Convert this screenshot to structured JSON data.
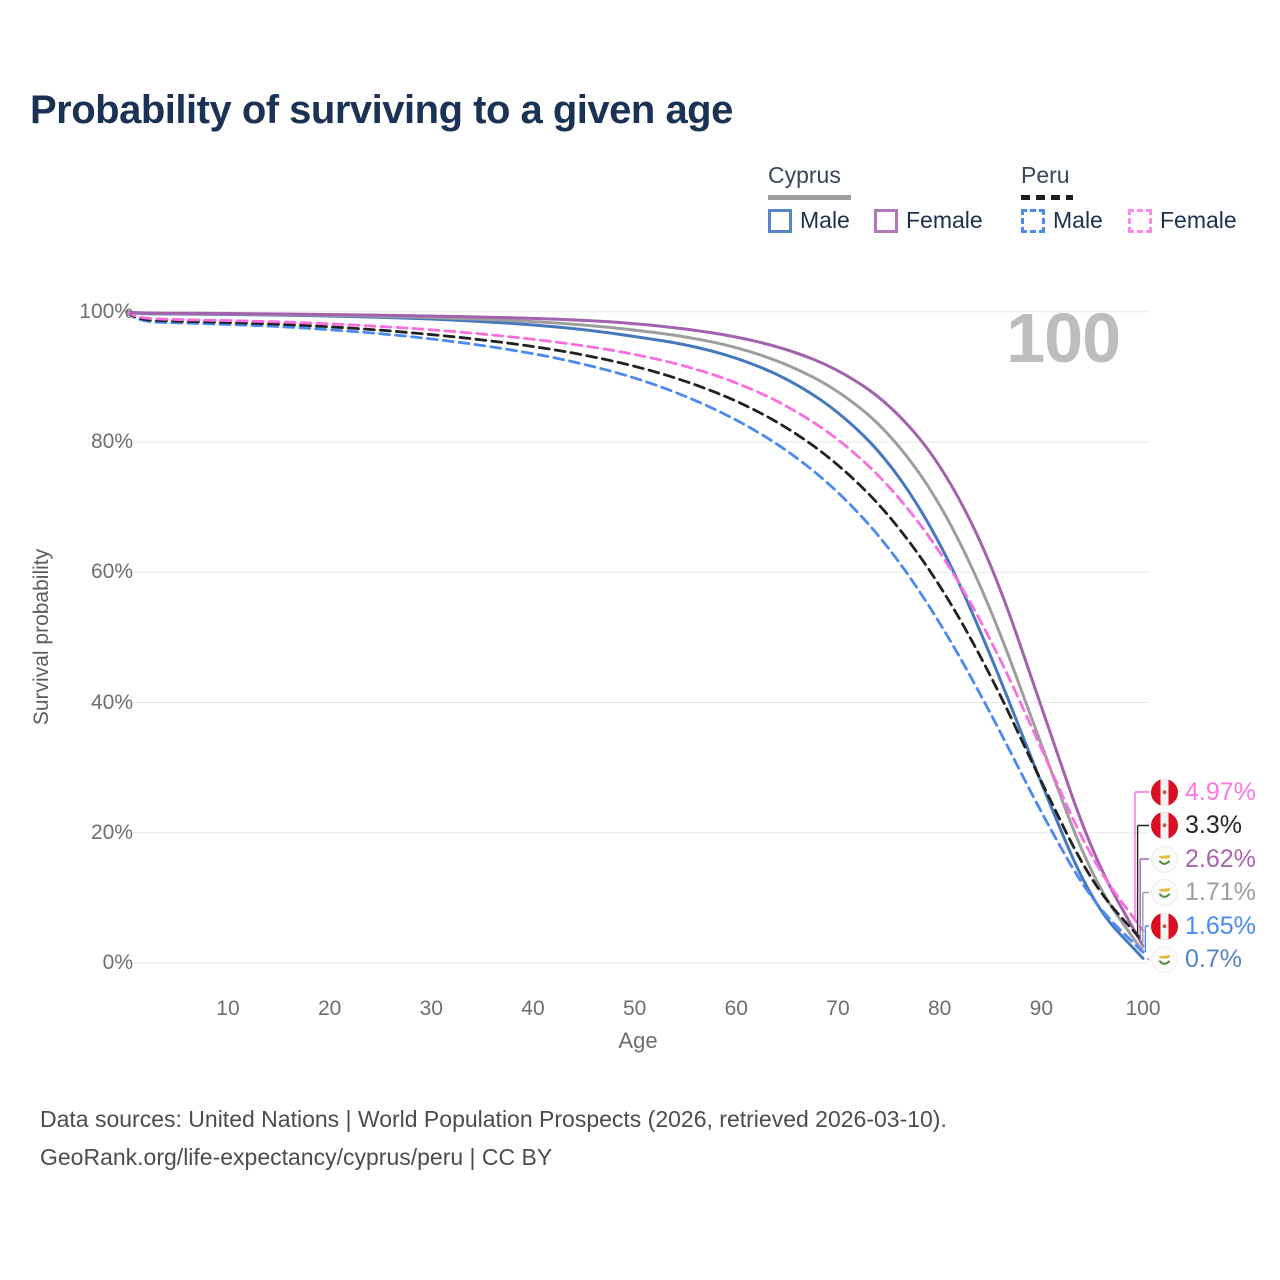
{
  "title": "Probability of surviving to a given age",
  "age_counter": "100",
  "legend": {
    "groups": [
      {
        "country": "Cyprus",
        "line_style": "solid",
        "underline_color": "#9e9e9e",
        "items": [
          {
            "label": "Male",
            "color": "#5b85c4"
          },
          {
            "label": "Female",
            "color": "#b478ba"
          }
        ]
      },
      {
        "country": "Peru",
        "line_style": "dashed",
        "underline_color": "#1d1d1d",
        "items": [
          {
            "label": "Male",
            "color": "#4a8af2"
          },
          {
            "label": "Female",
            "color": "#fa8ae6"
          }
        ]
      }
    ]
  },
  "axes": {
    "y_title": "Survival probability",
    "y_ticks": [
      {
        "label": "100%",
        "value": 100
      },
      {
        "label": "80%",
        "value": 80
      },
      {
        "label": "60%",
        "value": 60
      },
      {
        "label": "40%",
        "value": 40
      },
      {
        "label": "20%",
        "value": 20
      },
      {
        "label": "0%",
        "value": 0
      }
    ],
    "x_title": "Age",
    "x_ticks": [
      {
        "label": "10",
        "value": 10
      },
      {
        "label": "20",
        "value": 20
      },
      {
        "label": "30",
        "value": 30
      },
      {
        "label": "40",
        "value": 40
      },
      {
        "label": "50",
        "value": 50
      },
      {
        "label": "60",
        "value": 60
      },
      {
        "label": "70",
        "value": 70
      },
      {
        "label": "80",
        "value": 80
      },
      {
        "label": "90",
        "value": 90
      },
      {
        "label": "100",
        "value": 100
      }
    ]
  },
  "chart_data": {
    "type": "line",
    "title": "Probability of surviving to a given age",
    "xlabel": "Age",
    "ylabel": "Survival probability",
    "x_range": [
      0,
      100
    ],
    "y_range_pct": [
      0,
      100
    ],
    "grid": "horizontal",
    "legend_position": "top-right",
    "ages": [
      0,
      1,
      5,
      10,
      15,
      20,
      25,
      30,
      35,
      40,
      45,
      50,
      55,
      60,
      65,
      70,
      75,
      80,
      85,
      90,
      95,
      100
    ],
    "series": [
      {
        "name": "Cyprus Male",
        "country": "Cyprus",
        "sex": "Male",
        "style": "solid",
        "color": "#4678be",
        "values": [
          100,
          99.7,
          99.65,
          99.6,
          99.5,
          99.35,
          99.15,
          98.9,
          98.5,
          98.0,
          97.3,
          96.2,
          95.0,
          93.0,
          89.8,
          84.8,
          77.2,
          65.0,
          47.5,
          27.5,
          9.0,
          0.7
        ],
        "final_label": "0.7%"
      },
      {
        "name": "Cyprus Total",
        "country": "Cyprus",
        "sex": "Both",
        "style": "solid",
        "color": "#9e9e9e",
        "values": [
          100,
          99.76,
          99.71,
          99.66,
          99.57,
          99.46,
          99.3,
          99.12,
          98.85,
          98.5,
          98.0,
          97.2,
          96.2,
          94.6,
          92.0,
          88.0,
          81.6,
          71.0,
          54.8,
          33.5,
          12.8,
          1.71
        ],
        "final_label": "1.71%"
      },
      {
        "name": "Cyprus Female",
        "country": "Cyprus",
        "sex": "Female",
        "style": "solid",
        "color": "#a262ae",
        "values": [
          100,
          99.82,
          99.78,
          99.73,
          99.65,
          99.57,
          99.47,
          99.35,
          99.2,
          99.0,
          98.7,
          98.2,
          97.4,
          96.2,
          94.3,
          91.2,
          86.0,
          77.0,
          62.0,
          39.5,
          16.5,
          2.62
        ],
        "final_label": "2.62%"
      },
      {
        "name": "Peru Male",
        "country": "Peru",
        "sex": "Male",
        "style": "dashed",
        "color": "#4a8af2",
        "values": [
          100,
          98.5,
          98.3,
          98.05,
          97.75,
          97.25,
          96.65,
          95.85,
          94.85,
          93.6,
          92.0,
          89.9,
          87.1,
          83.5,
          78.8,
          72.5,
          64.0,
          52.5,
          38.5,
          23.0,
          9.3,
          1.65
        ],
        "final_label": "1.65%"
      },
      {
        "name": "Peru Total",
        "country": "Peru",
        "sex": "Both",
        "style": "dashed",
        "color": "#222222",
        "values": [
          100,
          98.75,
          98.55,
          98.35,
          98.1,
          97.7,
          97.2,
          96.5,
          95.7,
          94.7,
          93.4,
          91.7,
          89.4,
          86.4,
          82.3,
          76.7,
          69.0,
          58.3,
          44.4,
          27.8,
          12.0,
          3.3
        ],
        "final_label": "3.3%"
      },
      {
        "name": "Peru Female",
        "country": "Peru",
        "sex": "Female",
        "style": "dashed",
        "color": "#fa6ee0",
        "values": [
          100,
          99.0,
          98.8,
          98.65,
          98.45,
          98.15,
          97.75,
          97.25,
          96.6,
          95.8,
          94.8,
          93.5,
          91.7,
          89.2,
          85.6,
          80.6,
          73.5,
          63.5,
          50.0,
          33.0,
          15.5,
          4.97
        ],
        "final_label": "4.97%"
      }
    ]
  },
  "end_labels": [
    {
      "label": "4.97%",
      "color": "#f878df",
      "flag": "peru",
      "series": "Peru Female"
    },
    {
      "label": "3.3%",
      "color": "#262626",
      "flag": "peru",
      "series": "Peru Total"
    },
    {
      "label": "2.62%",
      "color": "#a864ad",
      "flag": "cyprus",
      "series": "Cyprus Female"
    },
    {
      "label": "1.71%",
      "color": "#9e9e9e",
      "flag": "cyprus",
      "series": "Cyprus Total"
    },
    {
      "label": "1.65%",
      "color": "#4a8af2",
      "flag": "peru",
      "series": "Peru Male"
    },
    {
      "label": "0.7%",
      "color": "#5584c6",
      "flag": "cyprus",
      "series": "Cyprus Male"
    }
  ],
  "footer": {
    "line1": "Data sources: United Nations | World Population Prospects (2026, retrieved 2026-03-10).",
    "line2": "GeoRank.org/life-expectancy/cyprus/peru | CC BY"
  }
}
